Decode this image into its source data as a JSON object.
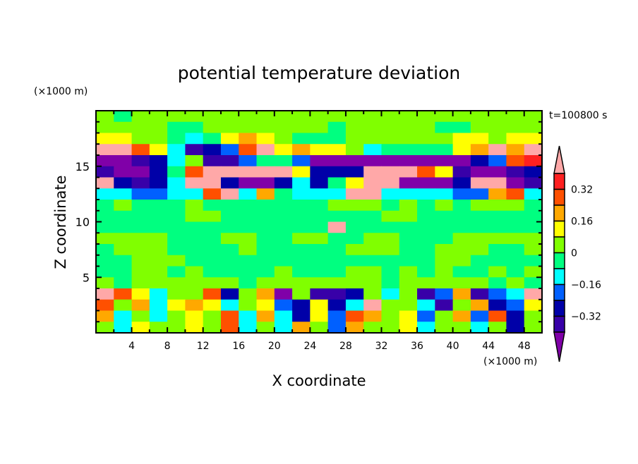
{
  "chart_data": {
    "type": "heatmap",
    "title": "potential temperature deviation",
    "xlabel": "X coordinate",
    "ylabel": "Z coordinate",
    "x_unit": "(×1000 m)",
    "y_unit": "(×1000 m)",
    "time_label": "t=100800 s",
    "xlim": [
      0,
      50
    ],
    "ylim": [
      0,
      20
    ],
    "x_ticks": [
      4,
      8,
      12,
      16,
      20,
      24,
      28,
      32,
      36,
      40,
      44,
      48
    ],
    "y_ticks": [
      5,
      10,
      15
    ],
    "colorbar": {
      "levels": [
        -0.4,
        -0.32,
        -0.24,
        -0.16,
        -0.08,
        0,
        0.08,
        0.16,
        0.24,
        0.32,
        0.4
      ],
      "tick_labels": [
        {
          "value": 0.32,
          "label": "0.32"
        },
        {
          "value": 0.16,
          "label": "0.16"
        },
        {
          "value": 0,
          "label": "0"
        },
        {
          "value": -0.16,
          "label": "−0.16"
        },
        {
          "value": -0.32,
          "label": "−0.32"
        }
      ],
      "colors": [
        "#8000a8",
        "#3800a8",
        "#0000a8",
        "#0060ff",
        "#00ffff",
        "#00ff80",
        "#80ff00",
        "#ffff00",
        "#ffa800",
        "#ff5000",
        "#ff2020",
        "#ffa8a8"
      ],
      "extend": "both"
    },
    "grid_x_step": 2,
    "grid_z_step": 1,
    "z_rows_top_to_bottom": [
      [
        0.04,
        -0.04,
        0.04,
        0.04,
        0.04,
        0.04,
        0.04,
        0.04,
        0.04,
        0.04,
        0.04,
        0.04,
        0.04,
        0.04,
        0.04,
        0.04,
        0.04,
        0.04,
        0.04,
        0.04,
        0.04,
        0.04,
        0.04,
        0.04,
        0.04
      ],
      [
        0.04,
        0.04,
        0.04,
        0.04,
        -0.04,
        -0.04,
        0.04,
        0.04,
        0.04,
        0.04,
        0.04,
        0.04,
        0.04,
        -0.04,
        0.04,
        0.04,
        0.04,
        0.04,
        0.04,
        -0.04,
        -0.04,
        0.04,
        0.04,
        0.04,
        0.04
      ],
      [
        0.12,
        0.12,
        0.04,
        0.04,
        -0.04,
        -0.12,
        -0.04,
        0.12,
        0.2,
        0.12,
        0.04,
        -0.04,
        -0.04,
        -0.04,
        0.04,
        0.04,
        0.04,
        0.04,
        0.04,
        0.04,
        0.12,
        0.12,
        0.04,
        0.12,
        0.12
      ],
      [
        0.45,
        0.45,
        0.28,
        0.12,
        -0.12,
        -0.36,
        -0.28,
        -0.2,
        0.28,
        0.45,
        0.12,
        0.2,
        0.12,
        0.12,
        0.04,
        -0.12,
        -0.04,
        -0.04,
        -0.04,
        -0.04,
        0.12,
        0.2,
        0.45,
        0.2,
        0.45
      ],
      [
        -0.45,
        -0.45,
        -0.36,
        -0.28,
        -0.12,
        0.04,
        -0.36,
        -0.36,
        -0.2,
        -0.04,
        -0.04,
        -0.2,
        -0.45,
        -0.45,
        -0.45,
        -0.45,
        -0.45,
        -0.45,
        -0.45,
        -0.45,
        -0.45,
        -0.28,
        -0.2,
        0.28,
        0.36
      ],
      [
        -0.36,
        -0.45,
        -0.45,
        -0.28,
        -0.04,
        0.28,
        0.45,
        0.45,
        0.45,
        0.45,
        0.45,
        0.12,
        -0.28,
        -0.28,
        -0.28,
        0.45,
        0.45,
        0.45,
        0.28,
        0.12,
        -0.36,
        -0.45,
        -0.45,
        -0.36,
        -0.28
      ],
      [
        0.45,
        -0.28,
        -0.36,
        -0.28,
        -0.12,
        0.45,
        0.45,
        -0.28,
        -0.45,
        -0.45,
        -0.28,
        -0.12,
        -0.28,
        -0.04,
        0.12,
        0.45,
        0.45,
        -0.45,
        -0.45,
        -0.45,
        -0.28,
        0.45,
        0.45,
        -0.45,
        -0.36
      ],
      [
        -0.12,
        -0.12,
        -0.2,
        -0.2,
        -0.12,
        -0.12,
        0.28,
        0.45,
        -0.12,
        0.2,
        -0.04,
        -0.12,
        -0.12,
        -0.12,
        0.45,
        0.45,
        -0.12,
        -0.12,
        -0.12,
        -0.12,
        -0.2,
        -0.2,
        0.2,
        0.28,
        -0.12
      ],
      [
        -0.04,
        0.04,
        -0.04,
        -0.04,
        -0.04,
        0.04,
        -0.04,
        -0.04,
        -0.04,
        -0.04,
        -0.04,
        -0.04,
        -0.04,
        0.04,
        0.04,
        0.04,
        -0.04,
        0.04,
        -0.04,
        0.04,
        -0.04,
        0.04,
        0.04,
        0.04,
        -0.04
      ],
      [
        -0.04,
        -0.04,
        -0.04,
        -0.04,
        -0.04,
        0.04,
        0.04,
        -0.04,
        -0.04,
        -0.04,
        -0.04,
        -0.04,
        -0.04,
        -0.04,
        -0.04,
        -0.04,
        0.04,
        0.04,
        -0.04,
        -0.04,
        -0.04,
        -0.04,
        -0.04,
        -0.04,
        -0.04
      ],
      [
        -0.04,
        -0.04,
        -0.04,
        -0.04,
        -0.04,
        -0.04,
        -0.04,
        -0.04,
        -0.04,
        -0.04,
        -0.04,
        -0.04,
        -0.04,
        0.45,
        -0.04,
        -0.04,
        -0.04,
        -0.04,
        -0.04,
        -0.04,
        -0.04,
        -0.04,
        -0.04,
        -0.04,
        -0.04
      ],
      [
        0.04,
        0.04,
        0.04,
        0.04,
        -0.04,
        -0.04,
        -0.04,
        0.04,
        0.04,
        -0.04,
        -0.04,
        0.04,
        0.04,
        -0.04,
        -0.04,
        0.04,
        0.04,
        -0.04,
        -0.04,
        -0.04,
        0.04,
        0.04,
        0.04,
        0.04,
        0.04
      ],
      [
        -0.04,
        0.04,
        0.04,
        0.04,
        -0.04,
        -0.04,
        -0.04,
        -0.04,
        0.04,
        -0.04,
        -0.04,
        -0.04,
        -0.04,
        -0.04,
        0.04,
        0.04,
        0.04,
        -0.04,
        -0.04,
        0.04,
        0.04,
        0.04,
        -0.04,
        -0.04,
        0.04
      ],
      [
        -0.04,
        -0.04,
        0.04,
        0.04,
        0.04,
        -0.04,
        -0.04,
        -0.04,
        -0.04,
        -0.04,
        -0.04,
        -0.04,
        -0.04,
        -0.04,
        -0.04,
        -0.04,
        -0.04,
        -0.04,
        -0.04,
        0.04,
        0.04,
        -0.04,
        -0.04,
        -0.04,
        -0.04
      ],
      [
        -0.04,
        -0.04,
        0.04,
        0.04,
        -0.04,
        0.04,
        -0.04,
        -0.04,
        -0.04,
        -0.04,
        0.04,
        -0.04,
        -0.04,
        -0.04,
        0.04,
        0.04,
        -0.04,
        0.04,
        -0.04,
        0.04,
        -0.04,
        -0.04,
        0.04,
        -0.04,
        0.04
      ],
      [
        0.04,
        -0.04,
        0.04,
        0.04,
        0.04,
        0.04,
        0.04,
        0.04,
        -0.04,
        0.04,
        0.04,
        0.04,
        0.04,
        0.04,
        0.04,
        0.04,
        -0.04,
        0.04,
        0.04,
        0.04,
        0.04,
        0.04,
        -0.04,
        0.04,
        -0.04
      ],
      [
        0.45,
        0.28,
        0.12,
        -0.12,
        0.04,
        0.04,
        0.28,
        -0.28,
        0.04,
        0.2,
        -0.45,
        0.04,
        -0.36,
        -0.36,
        -0.28,
        0.04,
        -0.12,
        0.04,
        -0.36,
        -0.2,
        0.2,
        -0.36,
        -0.2,
        -0.12,
        0.45
      ],
      [
        0.28,
        0.04,
        0.2,
        -0.12,
        0.12,
        0.2,
        0.12,
        -0.12,
        0.04,
        0.12,
        -0.2,
        -0.28,
        0.12,
        -0.28,
        -0.12,
        0.45,
        0.04,
        0.04,
        -0.12,
        -0.36,
        0.04,
        0.2,
        -0.28,
        -0.2,
        0.12
      ],
      [
        0.2,
        -0.12,
        0.04,
        -0.12,
        0.04,
        0.12,
        0.04,
        0.28,
        -0.12,
        0.2,
        -0.12,
        -0.28,
        0.12,
        -0.2,
        0.28,
        0.2,
        0.04,
        0.12,
        -0.2,
        0.04,
        0.2,
        -0.2,
        0.28,
        -0.28,
        0.04
      ],
      [
        0.04,
        -0.12,
        0.12,
        0.04,
        0.04,
        0.12,
        0.04,
        0.28,
        -0.12,
        0.04,
        -0.12,
        0.2,
        0.04,
        -0.2,
        0.2,
        0.04,
        0.04,
        0.12,
        -0.12,
        0.04,
        0.04,
        -0.12,
        0.04,
        -0.28,
        0.04
      ]
    ]
  }
}
